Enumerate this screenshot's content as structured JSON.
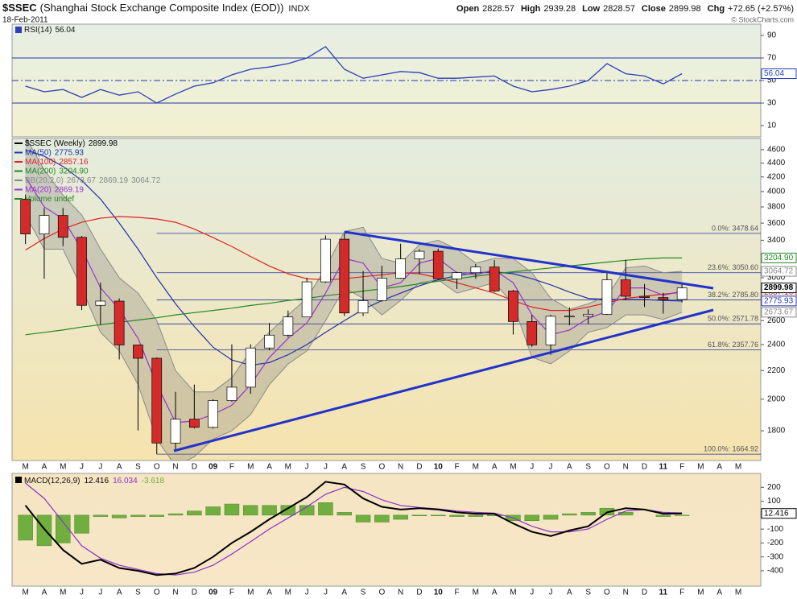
{
  "header": {
    "symbol": "$SSEC",
    "name": "(Shanghai Stock Exchange Composite Index (EOD))",
    "exchange": "INDX",
    "date": "18-Feb-2011",
    "quote": [
      {
        "label": "Open",
        "value": 2828.57
      },
      {
        "label": "High",
        "value": 2939.28
      },
      {
        "label": "Low",
        "value": 2828.57
      },
      {
        "label": "Close",
        "value": 2899.98
      },
      {
        "label": "Chg",
        "value": "+72.65 (+2.57%)"
      }
    ],
    "credit": "© StockCharts.com"
  },
  "chart_data": [
    {
      "type": "line",
      "categories": [
        "M",
        "A",
        "M",
        "J",
        "J",
        "A",
        "S",
        "O",
        "N",
        "D",
        "09",
        "F",
        "M",
        "A",
        "M",
        "J",
        "J",
        "A",
        "S",
        "O",
        "N",
        "D",
        "10",
        "F",
        "M",
        "A",
        "M",
        "J",
        "J",
        "A",
        "S",
        "O",
        "N",
        "D",
        "11",
        "F",
        "M",
        "A",
        "M"
      ],
      "series": [
        {
          "name": "RSI(14)",
          "color": "#2b3fb8",
          "values": [
            45,
            40,
            42,
            35,
            42,
            37,
            40,
            30,
            38,
            45,
            48,
            55,
            60,
            62,
            65,
            70,
            80,
            60,
            52,
            55,
            58,
            57,
            52,
            52,
            53,
            54,
            45,
            40,
            42,
            45,
            50,
            65,
            56,
            54,
            47,
            56.04,
            null,
            null,
            null
          ]
        }
      ],
      "ylim": [
        0,
        100
      ],
      "yticks": [
        10,
        30,
        50,
        70,
        90
      ],
      "levels": [
        30,
        50,
        70
      ]
    },
    {
      "type": "candlestick",
      "name": "$SSEC (Weekly)",
      "log_scale": true,
      "categories": [
        "M",
        "A",
        "M",
        "J",
        "J",
        "A",
        "S",
        "O",
        "N",
        "D",
        "09",
        "F",
        "M",
        "A",
        "M",
        "J",
        "J",
        "A",
        "S",
        "O",
        "N",
        "D",
        "10",
        "F",
        "M",
        "A",
        "M",
        "J",
        "J",
        "A",
        "S",
        "O",
        "N",
        "D",
        "11",
        "F",
        "M",
        "A",
        "M"
      ],
      "open": [
        3900,
        3472,
        3693,
        3433,
        2736,
        2775,
        2397,
        2293,
        1728,
        1871,
        1821,
        1991,
        2082,
        2373,
        2477,
        2632,
        2959,
        3412,
        2667,
        2779,
        2996,
        3195,
        3277,
        2989,
        3051,
        3109,
        2870,
        2592,
        2398,
        2638,
        2639,
        2656,
        2979,
        2820,
        2808,
        2790,
        null,
        null,
        null
      ],
      "high": [
        3960,
        3786,
        3786,
        3448,
        2952,
        2800,
        2400,
        2300,
        2050,
        2100,
        2000,
        2402,
        2402,
        2579,
        2689,
        3000,
        3454,
        3478,
        3068,
        3123,
        3361,
        3300,
        3306,
        3060,
        3140,
        3181,
        2880,
        2650,
        2650,
        2716,
        2700,
        3071,
        3186,
        2938,
        2853,
        2939.28,
        null,
        null,
        null
      ],
      "low": [
        3357,
        2990,
        3333,
        2693,
        2566,
        2284,
        1802,
        1665,
        1678,
        1814,
        1814,
        1983,
        2037,
        2355,
        2460,
        2630,
        2950,
        2639,
        2640,
        2770,
        2990,
        3039,
        2986,
        2890,
        2990,
        2860,
        2482,
        2382,
        2319,
        2560,
        2573,
        2650,
        2782,
        2721,
        2661,
        2763,
        null,
        null,
        null
      ],
      "close": [
        3472,
        3693,
        3433,
        2736,
        2775,
        2397,
        2293,
        1728,
        1871,
        1821,
        1991,
        2082,
        2373,
        2477,
        2632,
        2959,
        3412,
        2667,
        2779,
        2996,
        3195,
        3277,
        2989,
        3051,
        3109,
        2870,
        2592,
        2398,
        2638,
        2639,
        2656,
        2979,
        2820,
        2808,
        2790,
        2899.98,
        null,
        null,
        null
      ],
      "up_color": "#ffffff",
      "down_color": "#d42a2a",
      "overlays": [
        {
          "name": "MA(50)",
          "color": "#2233aa",
          "values": [
            4600,
            4500,
            4350,
            4150,
            3900,
            3600,
            3300,
            3000,
            2750,
            2550,
            2380,
            2280,
            2240,
            2260,
            2320,
            2400,
            2500,
            2600,
            2700,
            2780,
            2850,
            2920,
            2980,
            3020,
            3050,
            3060,
            3040,
            2990,
            2930,
            2860,
            2800,
            2790,
            2790,
            2790,
            2780,
            2775.93,
            null,
            null,
            null
          ]
        },
        {
          "name": "MA(100)",
          "color": "#dd2222",
          "values": [
            3290,
            3420,
            3530,
            3610,
            3660,
            3680,
            3670,
            3650,
            3610,
            3530,
            3430,
            3330,
            3220,
            3120,
            3040,
            2990,
            2980,
            2990,
            3010,
            3030,
            3050,
            3040,
            3000,
            2950,
            2900,
            2850,
            2780,
            2720,
            2690,
            2690,
            2720,
            2760,
            2800,
            2820,
            2840,
            2857.16,
            null,
            null,
            null
          ]
        },
        {
          "name": "MA(200)",
          "color": "#228822",
          "last_label": "3204.90",
          "values": [
            2480,
            2500,
            2520,
            2545,
            2565,
            2585,
            2605,
            2625,
            2650,
            2670,
            2690,
            2710,
            2735,
            2755,
            2780,
            2800,
            2825,
            2845,
            2870,
            2890,
            2913,
            2940,
            2965,
            2990,
            3015,
            3040,
            3060,
            3080,
            3100,
            3120,
            3140,
            3160,
            3180,
            3195,
            3205,
            3204.9,
            null,
            null,
            null
          ]
        },
        {
          "name": "MA(20)",
          "color": "#9933cc",
          "values": [
            4200,
            3800,
            3650,
            3300,
            2900,
            2700,
            2450,
            2100,
            1850,
            1860,
            1900,
            1960,
            2100,
            2300,
            2450,
            2580,
            2850,
            3200,
            3150,
            2900,
            2950,
            3150,
            3200,
            3050,
            3030,
            3080,
            2950,
            2650,
            2480,
            2520,
            2620,
            2680,
            2900,
            2900,
            2830,
            2869.19,
            null,
            null,
            null
          ]
        }
      ],
      "bb": {
        "name": "BB(20,2.0)",
        "color": "#8a8a8a",
        "upper": [
          4800,
          4300,
          3950,
          3700,
          3300,
          3000,
          2850,
          2600,
          2200,
          2050,
          2050,
          2150,
          2350,
          2500,
          2650,
          2800,
          3100,
          3500,
          3550,
          3200,
          3150,
          3350,
          3400,
          3300,
          3150,
          3200,
          3200,
          3050,
          2800,
          2700,
          2750,
          2820,
          3100,
          3120,
          3050,
          3064.72,
          null,
          null,
          null
        ],
        "lower": [
          3700,
          3300,
          3300,
          2900,
          2500,
          2350,
          2100,
          1750,
          1600,
          1650,
          1750,
          1800,
          1900,
          2100,
          2250,
          2350,
          2600,
          2900,
          2800,
          2650,
          2780,
          2950,
          2980,
          2850,
          2900,
          2950,
          2750,
          2300,
          2250,
          2350,
          2500,
          2540,
          2650,
          2650,
          2610,
          2673.67,
          null,
          null,
          null
        ]
      },
      "volume_label": "Volume undef",
      "volume_color": "#228822",
      "fib_levels": [
        {
          "value": 3478.64,
          "label": "0.0%: 3478.64"
        },
        {
          "value": 3050.6,
          "label": "23.6%: 3050.60"
        },
        {
          "value": 2785.8,
          "label": "38.2%: 2785.80"
        },
        {
          "value": 2571.78,
          "label": "50.0%: 2571.78"
        },
        {
          "value": 2357.76,
          "label": "61.8%: 2357.76"
        },
        {
          "value": 1664.92,
          "label": "100.0%: 1664.92"
        }
      ],
      "ylim": [
        1630,
        4775
      ],
      "yticks": [
        1800,
        2000,
        2200,
        2400,
        2600,
        3000,
        3400,
        3600,
        3800,
        4000,
        4200,
        4400,
        4600
      ]
    },
    {
      "type": "macd",
      "title": "MACD(12,26,9)",
      "categories": [
        "M",
        "A",
        "M",
        "J",
        "J",
        "A",
        "S",
        "O",
        "N",
        "D",
        "09",
        "F",
        "M",
        "A",
        "M",
        "J",
        "J",
        "A",
        "S",
        "O",
        "N",
        "D",
        "10",
        "F",
        "M",
        "A",
        "M",
        "J",
        "J",
        "A",
        "S",
        "O",
        "N",
        "D",
        "11",
        "F",
        "M",
        "A",
        "M"
      ],
      "series": [
        {
          "color": "#000000",
          "values": [
            70,
            -100,
            -250,
            -350,
            -320,
            -380,
            -400,
            -430,
            -420,
            -380,
            -300,
            -200,
            -120,
            -30,
            50,
            130,
            240,
            220,
            120,
            60,
            40,
            50,
            40,
            20,
            10,
            10,
            -60,
            -120,
            -150,
            -110,
            -80,
            20,
            50,
            40,
            10,
            12.416,
            null,
            null,
            null
          ]
        },
        {
          "color": "#8833cc",
          "values": [
            230,
            120,
            -50,
            -220,
            -310,
            -360,
            -390,
            -420,
            -430,
            -410,
            -360,
            -280,
            -190,
            -100,
            -20,
            60,
            150,
            200,
            170,
            110,
            70,
            55,
            45,
            30,
            20,
            15,
            -20,
            -80,
            -120,
            -120,
            -100,
            -30,
            30,
            40,
            20,
            16.034,
            null,
            null,
            null
          ]
        },
        {
          "color": "#6fae3f",
          "values": [
            -180,
            -220,
            -200,
            -130,
            -10,
            -20,
            -10,
            -10,
            10,
            30,
            60,
            80,
            70,
            70,
            70,
            70,
            90,
            20,
            -50,
            -50,
            -30,
            -5,
            -5,
            -10,
            -10,
            -5,
            -40,
            -40,
            -30,
            10,
            20,
            50,
            20,
            0,
            -10,
            -3.618,
            null,
            null,
            null
          ]
        }
      ],
      "ylim": [
        -510,
        300
      ],
      "yticks": [
        200,
        100,
        -100,
        -200,
        -300,
        -400
      ]
    }
  ]
}
